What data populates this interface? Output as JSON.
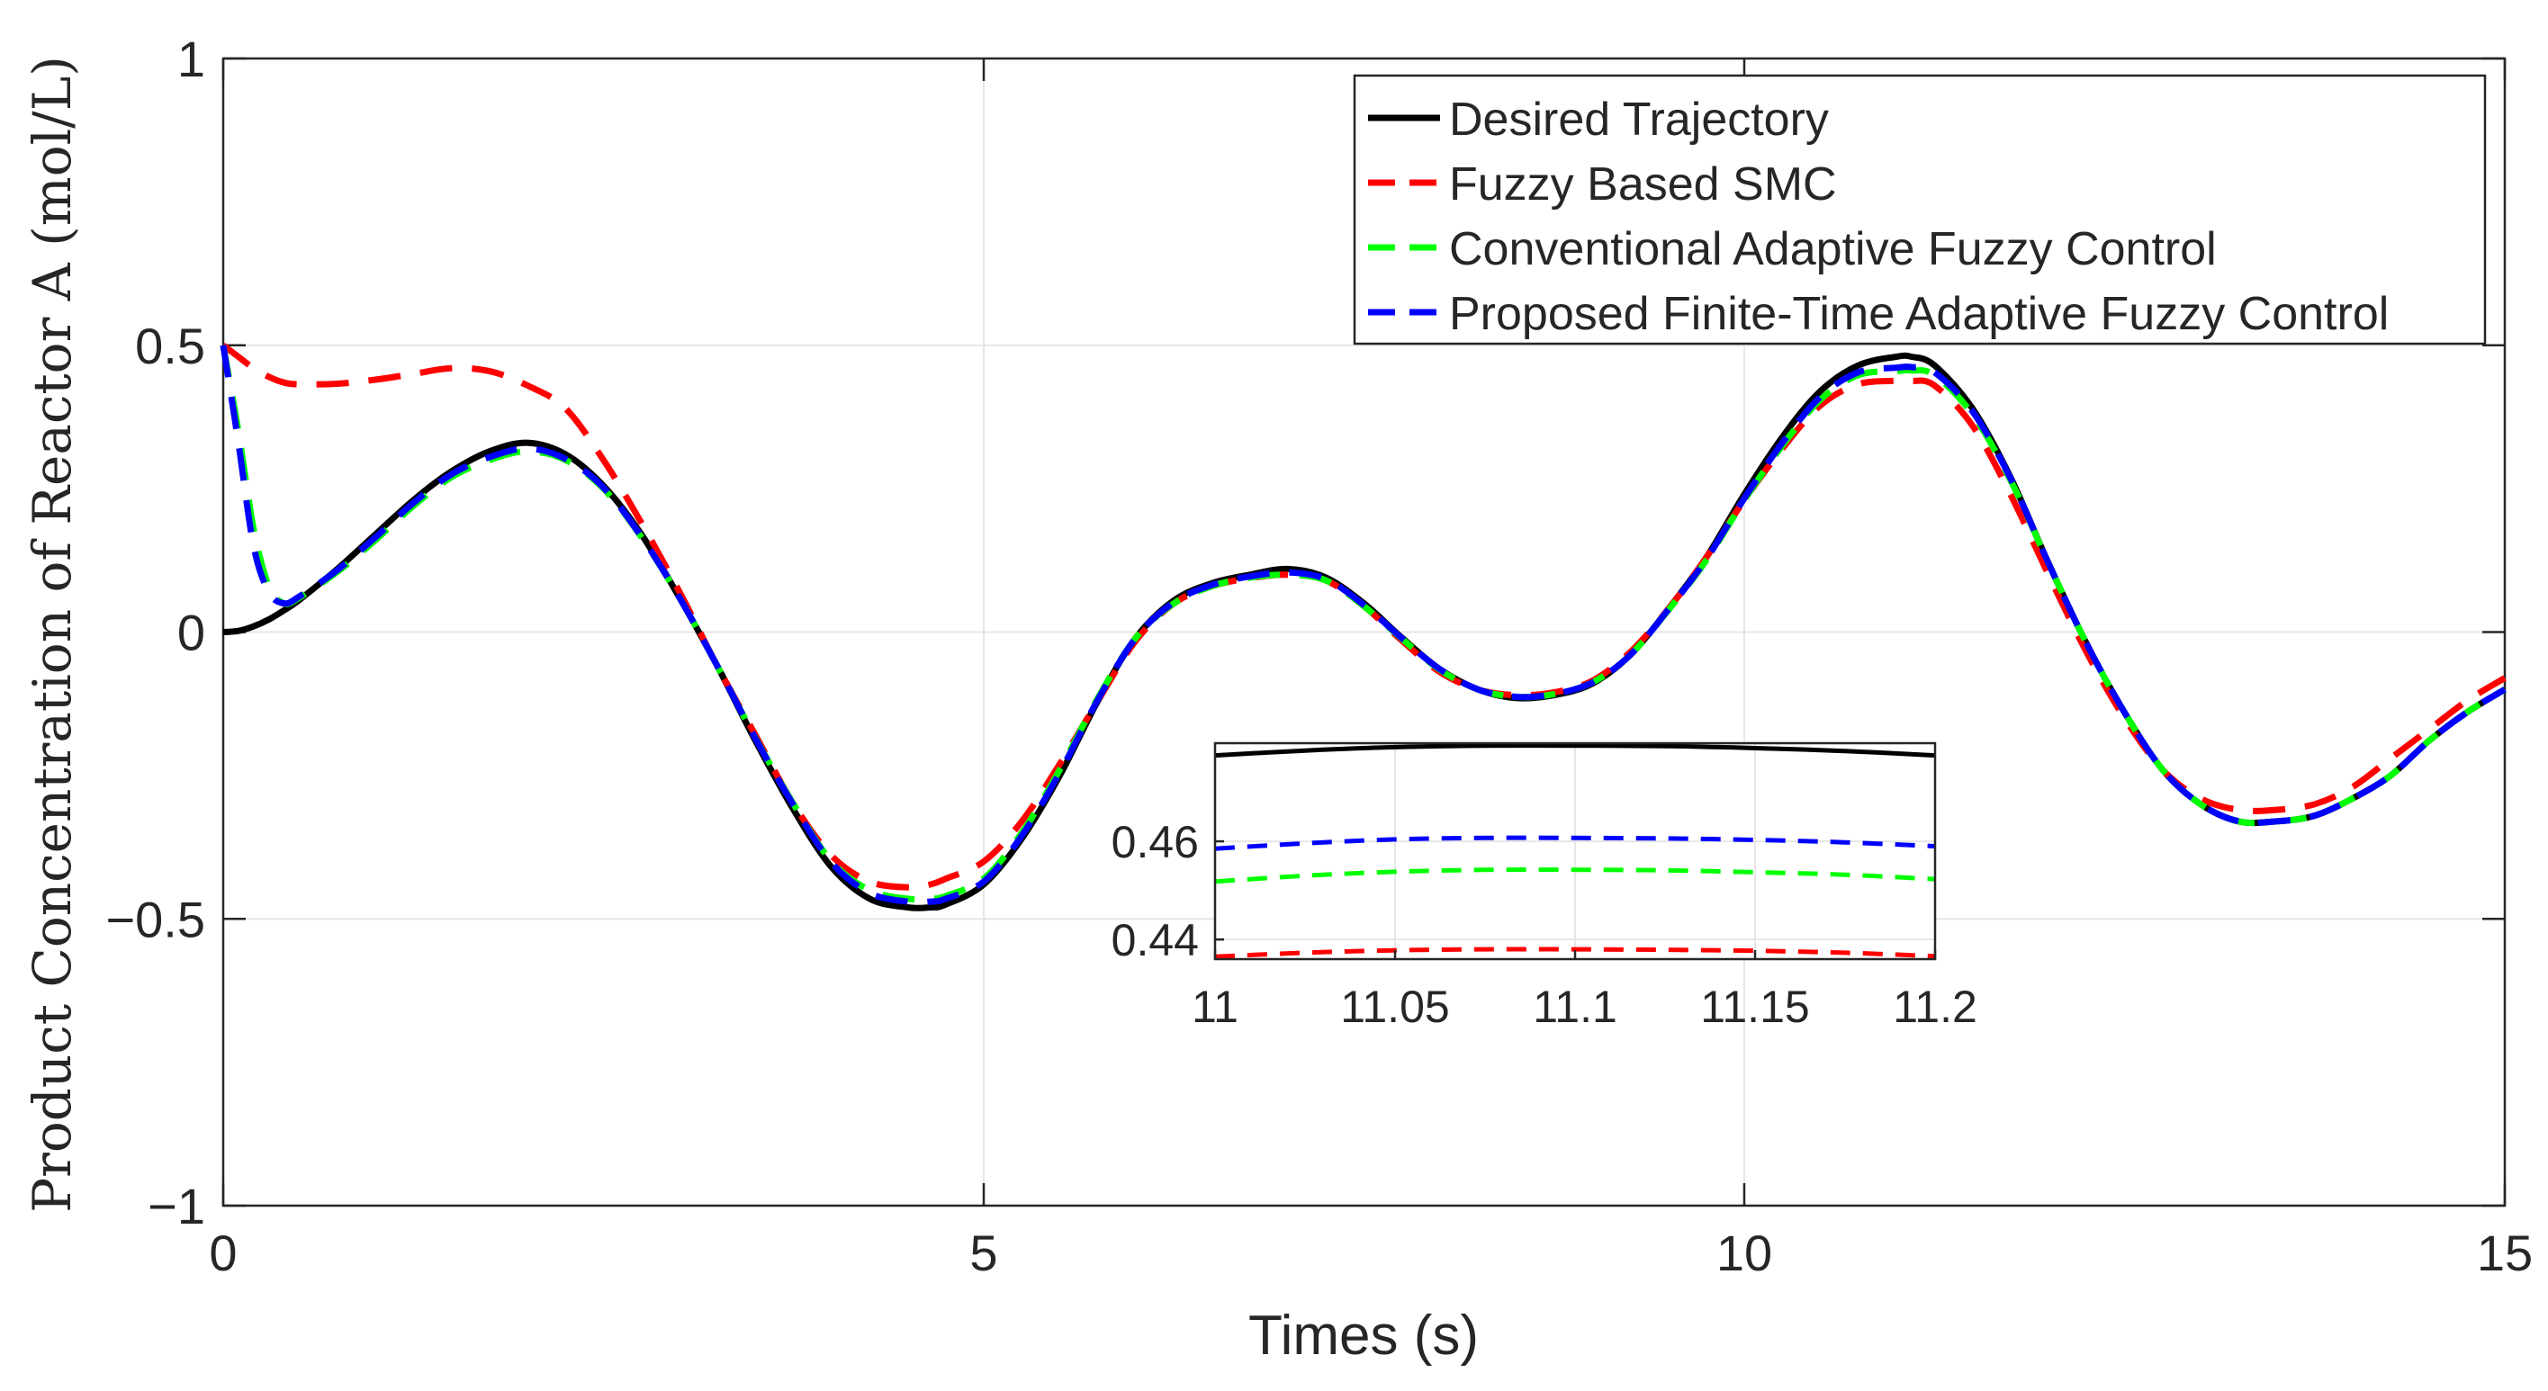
{
  "chart_data": {
    "type": "line",
    "title": "",
    "xlabel": "Times (s)",
    "ylabel": "Product Concentration of Reactor A (mol/L)",
    "xlim": [
      0,
      15
    ],
    "ylim": [
      -1,
      1
    ],
    "xticks": [
      0,
      5,
      10,
      15
    ],
    "xtick_labels": [
      "0",
      "5",
      "10",
      "15"
    ],
    "yticks": [
      -1,
      -0.5,
      0,
      0.5,
      1
    ],
    "ytick_labels": [
      "−1",
      "−0.5",
      "0",
      "0.5",
      "1"
    ],
    "grid": true,
    "legend_position": "top-right",
    "x": [
      0,
      0.1,
      0.2,
      0.3,
      0.4,
      0.5,
      0.75,
      1.0,
      1.25,
      1.5,
      1.75,
      2.0,
      2.25,
      2.5,
      2.75,
      3.0,
      3.25,
      3.5,
      3.75,
      4.0,
      4.25,
      4.5,
      4.65,
      4.75,
      5.0,
      5.25,
      5.5,
      5.75,
      6.0,
      6.25,
      6.5,
      6.75,
      7.0,
      7.25,
      7.5,
      7.75,
      8.0,
      8.25,
      8.5,
      8.75,
      9.0,
      9.25,
      9.5,
      9.75,
      10.0,
      10.25,
      10.5,
      10.75,
      11.0,
      11.1,
      11.25,
      11.5,
      11.75,
      12.0,
      12.25,
      12.5,
      12.75,
      13.0,
      13.25,
      13.5,
      13.75,
      14.0,
      14.25,
      14.5,
      14.75,
      15.0
    ],
    "series": [
      {
        "name": "Desired Trajectory",
        "color": "#000000",
        "dash": "solid",
        "values": [
          0,
          0.002,
          0.01,
          0.022,
          0.038,
          0.056,
          0.11,
          0.17,
          0.23,
          0.28,
          0.315,
          0.33,
          0.31,
          0.255,
          0.17,
          0.06,
          -0.06,
          -0.19,
          -0.31,
          -0.41,
          -0.465,
          -0.48,
          -0.48,
          -0.475,
          -0.44,
          -0.36,
          -0.25,
          -0.12,
          -0.01,
          0.055,
          0.085,
          0.1,
          0.11,
          0.095,
          0.05,
          -0.01,
          -0.065,
          -0.1,
          -0.115,
          -0.11,
          -0.09,
          -0.04,
          0.04,
          0.13,
          0.24,
          0.34,
          0.42,
          0.465,
          0.48,
          0.48,
          0.465,
          0.39,
          0.27,
          0.12,
          -0.02,
          -0.14,
          -0.24,
          -0.3,
          -0.33,
          -0.33,
          -0.32,
          -0.29,
          -0.25,
          -0.19,
          -0.14,
          -0.1
        ]
      },
      {
        "name": "Fuzzy Based SMC",
        "color": "#ff0000",
        "dash": "dashed",
        "values": [
          0.5,
          0.48,
          0.46,
          0.445,
          0.435,
          0.432,
          0.433,
          0.44,
          0.45,
          0.46,
          0.455,
          0.43,
          0.39,
          0.3,
          0.19,
          0.07,
          -0.06,
          -0.18,
          -0.3,
          -0.39,
          -0.435,
          -0.445,
          -0.44,
          -0.43,
          -0.4,
          -0.33,
          -0.23,
          -0.12,
          -0.015,
          0.05,
          0.08,
          0.094,
          0.1,
          0.09,
          0.045,
          -0.015,
          -0.07,
          -0.1,
          -0.11,
          -0.105,
          -0.085,
          -0.035,
          0.04,
          0.13,
          0.23,
          0.32,
          0.395,
          0.432,
          0.438,
          0.438,
          0.43,
          0.36,
          0.24,
          0.1,
          -0.035,
          -0.15,
          -0.24,
          -0.29,
          -0.31,
          -0.31,
          -0.3,
          -0.27,
          -0.22,
          -0.17,
          -0.12,
          -0.08
        ]
      },
      {
        "name": "Conventional Adaptive Fuzzy Control",
        "color": "#00ff00",
        "dash": "dashed",
        "values": [
          0.5,
          0.35,
          0.18,
          0.08,
          0.05,
          0.06,
          0.105,
          0.16,
          0.22,
          0.27,
          0.3,
          0.315,
          0.3,
          0.25,
          0.165,
          0.06,
          -0.06,
          -0.185,
          -0.3,
          -0.4,
          -0.45,
          -0.465,
          -0.465,
          -0.46,
          -0.43,
          -0.35,
          -0.24,
          -0.115,
          -0.01,
          0.05,
          0.08,
          0.095,
          0.1,
          0.09,
          0.045,
          -0.012,
          -0.066,
          -0.1,
          -0.113,
          -0.108,
          -0.088,
          -0.04,
          0.038,
          0.125,
          0.23,
          0.325,
          0.405,
          0.448,
          0.455,
          0.456,
          0.448,
          0.38,
          0.265,
          0.12,
          -0.02,
          -0.14,
          -0.24,
          -0.3,
          -0.33,
          -0.33,
          -0.32,
          -0.29,
          -0.25,
          -0.19,
          -0.14,
          -0.1
        ]
      },
      {
        "name": "Proposed Finite-Time Adaptive Fuzzy Control",
        "color": "#0000ff",
        "dash": "dashed",
        "values": [
          0.5,
          0.33,
          0.15,
          0.07,
          0.05,
          0.062,
          0.108,
          0.165,
          0.225,
          0.275,
          0.305,
          0.32,
          0.302,
          0.252,
          0.166,
          0.06,
          -0.06,
          -0.186,
          -0.302,
          -0.402,
          -0.455,
          -0.47,
          -0.47,
          -0.465,
          -0.435,
          -0.355,
          -0.245,
          -0.118,
          -0.01,
          0.052,
          0.082,
          0.097,
          0.104,
          0.092,
          0.047,
          -0.011,
          -0.065,
          -0.1,
          -0.113,
          -0.108,
          -0.088,
          -0.04,
          0.039,
          0.127,
          0.233,
          0.33,
          0.41,
          0.453,
          0.461,
          0.462,
          0.453,
          0.385,
          0.268,
          0.12,
          -0.02,
          -0.14,
          -0.24,
          -0.3,
          -0.33,
          -0.33,
          -0.32,
          -0.29,
          -0.25,
          -0.19,
          -0.14,
          -0.1
        ]
      }
    ],
    "inset": {
      "xlim": [
        11,
        11.2
      ],
      "ylim": [
        0.436,
        0.48
      ],
      "xticks": [
        11,
        11.05,
        11.1,
        11.15,
        11.2
      ],
      "xtick_labels": [
        "11",
        "11.05",
        "11.1",
        "11.15",
        "11.2"
      ],
      "yticks": [
        0.44,
        0.46
      ],
      "ytick_labels": [
        "0.44",
        "0.46"
      ],
      "x": [
        11.0,
        11.025,
        11.05,
        11.075,
        11.1,
        11.125,
        11.15,
        11.175,
        11.2
      ],
      "series": [
        {
          "name": "Desired Trajectory",
          "color": "#000000",
          "dash": "solid",
          "values": [
            0.4775,
            0.4785,
            0.4792,
            0.4795,
            0.4795,
            0.4794,
            0.479,
            0.4784,
            0.4775
          ]
        },
        {
          "name": "Fuzzy Based SMC",
          "color": "#ff0000",
          "dash": "dashed",
          "values": [
            0.4365,
            0.4373,
            0.4378,
            0.438,
            0.438,
            0.4379,
            0.4377,
            0.4373,
            0.4366
          ]
        },
        {
          "name": "Conventional Adaptive Fuzzy Control",
          "color": "#00ff00",
          "dash": "dashed",
          "values": [
            0.4518,
            0.453,
            0.4538,
            0.4542,
            0.4542,
            0.4541,
            0.4537,
            0.4532,
            0.4523
          ]
        },
        {
          "name": "Proposed Finite-Time Adaptive Fuzzy Control",
          "color": "#0000ff",
          "dash": "dashed",
          "values": [
            0.4585,
            0.4596,
            0.4604,
            0.4607,
            0.4607,
            0.4606,
            0.4603,
            0.4598,
            0.459
          ]
        }
      ]
    }
  }
}
